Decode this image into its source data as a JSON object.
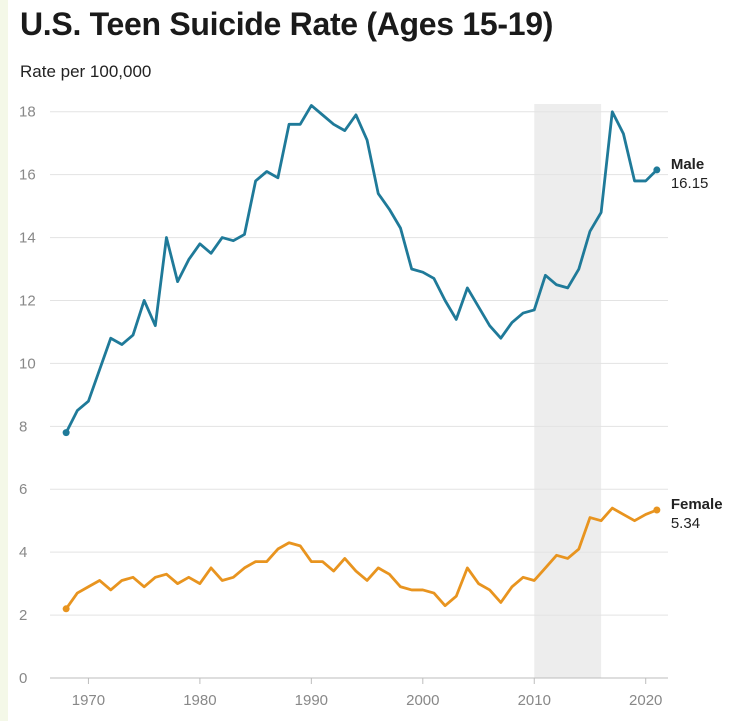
{
  "chart_data": {
    "type": "line",
    "title": "U.S. Teen Suicide Rate (Ages 15-19)",
    "subtitle": "Rate per 100,000",
    "xlabel": "",
    "ylabel": "",
    "xlim": [
      1967,
      2022
    ],
    "ylim": [
      0,
      18.5
    ],
    "y_ticks": [
      0,
      2,
      4,
      6,
      8,
      10,
      12,
      14,
      16,
      18
    ],
    "x_ticks": [
      1970,
      1980,
      1990,
      2000,
      2010,
      2020
    ],
    "grid": "horizontal",
    "highlight_band": {
      "x_start": 2010,
      "x_end": 2016
    },
    "x": [
      1968,
      1969,
      1970,
      1971,
      1972,
      1973,
      1974,
      1975,
      1976,
      1977,
      1978,
      1979,
      1980,
      1981,
      1982,
      1983,
      1984,
      1985,
      1986,
      1987,
      1988,
      1989,
      1990,
      1991,
      1992,
      1993,
      1994,
      1995,
      1996,
      1997,
      1998,
      1999,
      2000,
      2001,
      2002,
      2003,
      2004,
      2005,
      2006,
      2007,
      2008,
      2009,
      2010,
      2011,
      2012,
      2013,
      2014,
      2015,
      2016,
      2017,
      2018,
      2019,
      2020,
      2021
    ],
    "series": [
      {
        "name": "Male",
        "end_label": "16.15",
        "color": "#1f7a99",
        "values": [
          7.8,
          8.5,
          8.8,
          9.8,
          10.8,
          10.6,
          10.9,
          12.0,
          11.2,
          14.0,
          12.6,
          13.3,
          13.8,
          13.5,
          14.0,
          13.9,
          14.1,
          15.8,
          16.1,
          15.9,
          17.6,
          17.6,
          18.2,
          17.9,
          17.6,
          17.4,
          17.9,
          17.1,
          15.4,
          14.9,
          14.3,
          13.0,
          12.9,
          12.7,
          12.0,
          11.4,
          12.4,
          11.8,
          11.2,
          10.8,
          11.3,
          11.6,
          11.7,
          12.8,
          12.5,
          12.4,
          13.0,
          14.2,
          14.8,
          18.0,
          17.3,
          15.8,
          15.8,
          16.15
        ]
      },
      {
        "name": "Female",
        "end_label": "5.34",
        "color": "#e8941f",
        "values": [
          2.2,
          2.7,
          2.9,
          3.1,
          2.8,
          3.1,
          3.2,
          2.9,
          3.2,
          3.3,
          3.0,
          3.2,
          3.0,
          3.5,
          3.1,
          3.2,
          3.5,
          3.7,
          3.7,
          4.1,
          4.3,
          4.2,
          3.7,
          3.7,
          3.4,
          3.8,
          3.4,
          3.1,
          3.5,
          3.3,
          2.9,
          2.8,
          2.8,
          2.7,
          2.3,
          2.6,
          3.5,
          3.0,
          2.8,
          2.4,
          2.9,
          3.2,
          3.1,
          3.5,
          3.9,
          3.8,
          4.1,
          5.1,
          5.0,
          5.4,
          5.2,
          5.0,
          5.2,
          5.34
        ]
      }
    ]
  }
}
